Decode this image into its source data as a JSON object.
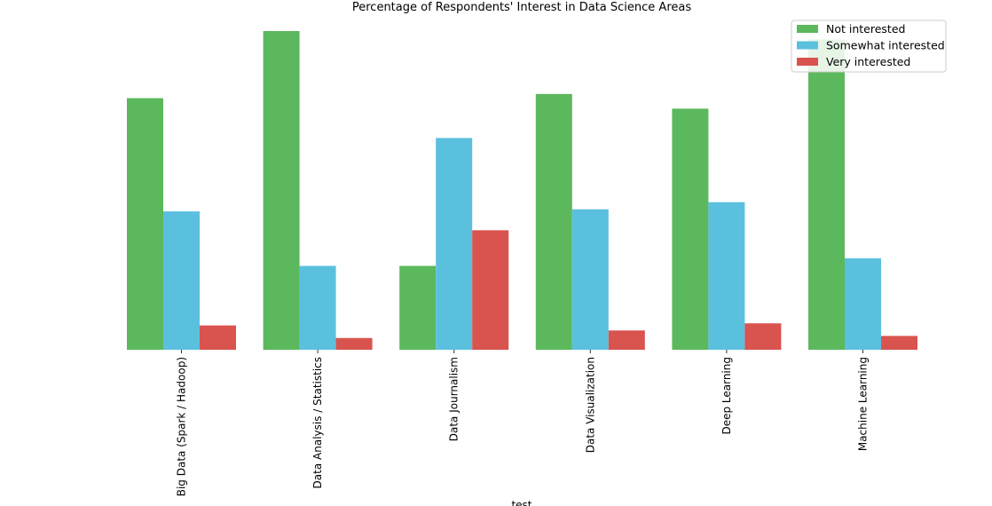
{
  "chart_data": {
    "type": "bar",
    "title": "Percentage of Respondents' Interest in Data Science Areas",
    "xlabel": "test",
    "ylabel": "",
    "categories": [
      "Big Data (Spark / Hadoop)",
      "Data Analysis / Statistics",
      "Data Journalism",
      "Data Visualization",
      "Deep Learning",
      "Machine Learning"
    ],
    "series": [
      {
        "name": "Not interested",
        "color": "#5cb85c",
        "values": [
          0.6,
          0.76,
          0.2,
          0.61,
          0.575,
          0.74
        ]
      },
      {
        "name": "Somewhat interested",
        "color": "#5bc0de",
        "values": [
          0.33,
          0.2,
          0.505,
          0.335,
          0.352,
          0.218
        ]
      },
      {
        "name": "Very interested",
        "color": "#d9534f",
        "values": [
          0.058,
          0.028,
          0.285,
          0.046,
          0.063,
          0.033
        ]
      }
    ],
    "ylim": [
      0,
      0.76
    ],
    "grid": false,
    "legend_position": "top-right",
    "y_axis_visible": false
  }
}
